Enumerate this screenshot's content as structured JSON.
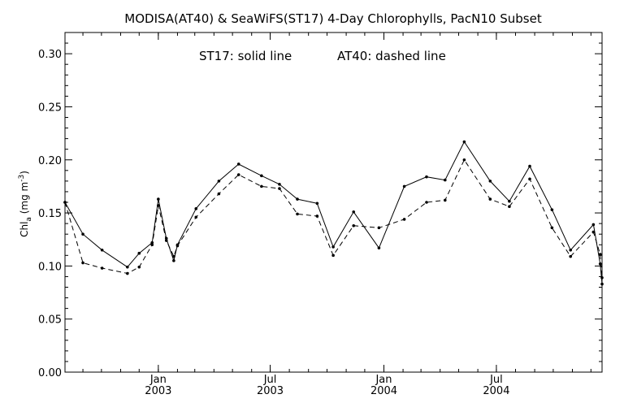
{
  "chart_data": {
    "type": "line",
    "title": "MODISA(AT40) & SeaWiFS(ST17) 4-Day Chlorophylls, PacN10 Subset",
    "annotation": {
      "solid_label": "ST17: solid line",
      "dashed_label": "AT40: dashed line"
    },
    "ylabel_main": "Chl",
    "ylabel_sub": "a",
    "ylabel_unit_open": " (mg m",
    "ylabel_unit_exp": "-3",
    "ylabel_unit_close": ")",
    "ylim": [
      0.0,
      0.32
    ],
    "yticks": [
      "0.00",
      "0.05",
      "0.10",
      "0.15",
      "0.20",
      "0.25",
      "0.30"
    ],
    "xlim": [
      "2002-08-03",
      "2004-12-19"
    ],
    "xticks": [
      {
        "date": "2003-01-01",
        "month": "Jan",
        "year": "2003"
      },
      {
        "date": "2003-07-01",
        "month": "Jul",
        "year": "2003"
      },
      {
        "date": "2004-01-01",
        "month": "Jan",
        "year": "2004"
      },
      {
        "date": "2004-07-01",
        "month": "Jul",
        "year": "2004"
      }
    ],
    "grid": false,
    "series": [
      {
        "name": "ST17",
        "style": "solid",
        "color": "#000000",
        "points": [
          {
            "x": "2002-08-03",
            "y": 0.16
          },
          {
            "x": "2002-09-01",
            "y": 0.13
          },
          {
            "x": "2002-10-02",
            "y": 0.115
          },
          {
            "x": "2002-11-12",
            "y": 0.099
          },
          {
            "x": "2002-12-01",
            "y": 0.112
          },
          {
            "x": "2002-12-22",
            "y": 0.122
          },
          {
            "x": "2003-01-01",
            "y": 0.163
          },
          {
            "x": "2003-01-14",
            "y": 0.126
          },
          {
            "x": "2003-01-26",
            "y": 0.105
          },
          {
            "x": "2003-02-01",
            "y": 0.12
          },
          {
            "x": "2003-03-03",
            "y": 0.154
          },
          {
            "x": "2003-04-09",
            "y": 0.18
          },
          {
            "x": "2003-05-11",
            "y": 0.196
          },
          {
            "x": "2003-06-17",
            "y": 0.185
          },
          {
            "x": "2003-07-16",
            "y": 0.177
          },
          {
            "x": "2003-08-14",
            "y": 0.163
          },
          {
            "x": "2003-09-15",
            "y": 0.159
          },
          {
            "x": "2003-10-11",
            "y": 0.118
          },
          {
            "x": "2003-11-13",
            "y": 0.151
          },
          {
            "x": "2003-12-24",
            "y": 0.117
          },
          {
            "x": "2004-02-03",
            "y": 0.175
          },
          {
            "x": "2004-03-10",
            "y": 0.184
          },
          {
            "x": "2004-04-09",
            "y": 0.181
          },
          {
            "x": "2004-05-10",
            "y": 0.217
          },
          {
            "x": "2004-06-21",
            "y": 0.18
          },
          {
            "x": "2004-07-22",
            "y": 0.161
          },
          {
            "x": "2004-08-24",
            "y": 0.194
          },
          {
            "x": "2004-09-29",
            "y": 0.153
          },
          {
            "x": "2004-10-29",
            "y": 0.115
          },
          {
            "x": "2004-12-05",
            "y": 0.139
          },
          {
            "x": "2004-12-16",
            "y": 0.102
          },
          {
            "x": "2004-12-19",
            "y": 0.083
          }
        ]
      },
      {
        "name": "AT40",
        "style": "dashed",
        "color": "#000000",
        "points": [
          {
            "x": "2002-08-03",
            "y": 0.16
          },
          {
            "x": "2002-09-01",
            "y": 0.103
          },
          {
            "x": "2002-10-02",
            "y": 0.098
          },
          {
            "x": "2002-11-12",
            "y": 0.093
          },
          {
            "x": "2002-12-01",
            "y": 0.099
          },
          {
            "x": "2002-12-22",
            "y": 0.12
          },
          {
            "x": "2003-01-01",
            "y": 0.157
          },
          {
            "x": "2003-01-14",
            "y": 0.124
          },
          {
            "x": "2003-01-26",
            "y": 0.109
          },
          {
            "x": "2003-02-01",
            "y": 0.119
          },
          {
            "x": "2003-03-03",
            "y": 0.146
          },
          {
            "x": "2003-04-09",
            "y": 0.168
          },
          {
            "x": "2003-05-11",
            "y": 0.186
          },
          {
            "x": "2003-06-17",
            "y": 0.175
          },
          {
            "x": "2003-07-16",
            "y": 0.173
          },
          {
            "x": "2003-08-14",
            "y": 0.149
          },
          {
            "x": "2003-09-15",
            "y": 0.147
          },
          {
            "x": "2003-10-11",
            "y": 0.11
          },
          {
            "x": "2003-11-13",
            "y": 0.138
          },
          {
            "x": "2003-12-24",
            "y": 0.136
          },
          {
            "x": "2004-02-03",
            "y": 0.144
          },
          {
            "x": "2004-03-10",
            "y": 0.16
          },
          {
            "x": "2004-04-09",
            "y": 0.162
          },
          {
            "x": "2004-05-10",
            "y": 0.2
          },
          {
            "x": "2004-06-21",
            "y": 0.163
          },
          {
            "x": "2004-07-22",
            "y": 0.156
          },
          {
            "x": "2004-08-24",
            "y": 0.182
          },
          {
            "x": "2004-09-29",
            "y": 0.136
          },
          {
            "x": "2004-10-29",
            "y": 0.109
          },
          {
            "x": "2004-12-05",
            "y": 0.132
          },
          {
            "x": "2004-12-16",
            "y": 0.111
          },
          {
            "x": "2004-12-19",
            "y": 0.089
          }
        ]
      }
    ]
  }
}
